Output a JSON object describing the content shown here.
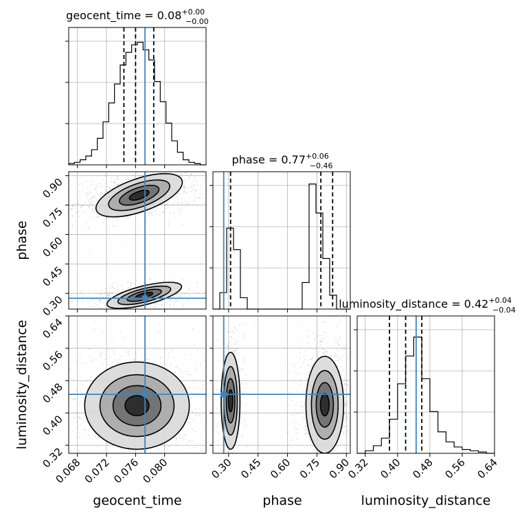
{
  "chart_data": {
    "type": "corner",
    "parameters": [
      "geocent_time",
      "phase",
      "luminosity_distance"
    ],
    "truth": {
      "geocent_time": 0.0773,
      "phase": 0.275,
      "luminosity_distance": 0.446
    },
    "panels": {
      "geocent_time": {
        "title": {
          "name": "geocent_time",
          "value": "0.08",
          "upper": "+0.00",
          "lower": "−0.00"
        },
        "range": [
          0.0668,
          0.0857
        ],
        "quantiles": [
          0.0744,
          0.076,
          0.0785
        ],
        "hist_heights": [
          0.01,
          0.02,
          0.04,
          0.07,
          0.12,
          0.21,
          0.34,
          0.49,
          0.64,
          0.79,
          0.89,
          0.95,
          0.97,
          0.91,
          0.83,
          0.66,
          0.5,
          0.33,
          0.19,
          0.1,
          0.04,
          0.02,
          0.01,
          0.0
        ],
        "xticks": [
          "0.068",
          "0.072",
          "0.076",
          "0.080"
        ]
      },
      "phase": {
        "title": {
          "name": "phase",
          "value": "0.77",
          "upper": "+0.06",
          "lower": "−0.46"
        },
        "range": [
          0.22,
          0.92
        ],
        "quantiles": [
          0.31,
          0.77,
          0.83
        ],
        "hist_heights": [
          0.0,
          0.13,
          0.64,
          0.47,
          0.09,
          0.0,
          0.0,
          0.0,
          0.0,
          0.0,
          0.0,
          0.0,
          0.0,
          0.21,
          0.99,
          0.76,
          0.4,
          0.11,
          0.0,
          0.0
        ],
        "ticks": [
          "0.30",
          "0.45",
          "0.60",
          "0.75",
          "0.90"
        ]
      },
      "luminosity_distance": {
        "title": {
          "name": "luminosity_distance",
          "value": "0.42",
          "upper": "+0.04",
          "lower": "−0.04"
        },
        "range": [
          0.3,
          0.64
        ],
        "quantiles": [
          0.38,
          0.42,
          0.46
        ],
        "hist_heights": [
          0.0,
          0.02,
          0.06,
          0.12,
          0.27,
          0.55,
          0.77,
          0.92,
          0.59,
          0.33,
          0.17,
          0.09,
          0.05,
          0.03,
          0.02,
          0.01,
          0.0
        ],
        "ticks": [
          "0.32",
          "0.40",
          "0.48",
          "0.56",
          "0.64"
        ]
      }
    },
    "pairs": [
      {
        "x": "geocent_time",
        "y": "phase",
        "blobs": [
          {
            "cx": 0.0765,
            "cy": 0.8,
            "sx": 0.0026,
            "sy": 0.035,
            "tilt": -0.35,
            "weight": 1.0
          },
          {
            "cx": 0.0772,
            "cy": 0.29,
            "sx": 0.0022,
            "sy": 0.02,
            "tilt": -0.25,
            "weight": 0.55
          }
        ]
      },
      {
        "x": "geocent_time",
        "y": "luminosity_distance",
        "blobs": [
          {
            "cx": 0.0762,
            "cy": 0.418,
            "sx": 0.003,
            "sy": 0.045,
            "tilt": 0.0,
            "weight": 1.0
          }
        ]
      },
      {
        "x": "phase",
        "y": "luminosity_distance",
        "blobs": [
          {
            "cx": 0.31,
            "cy": 0.43,
            "sx": 0.02,
            "sy": 0.05,
            "tilt": 0.0,
            "weight": 0.55
          },
          {
            "cx": 0.79,
            "cy": 0.42,
            "sx": 0.04,
            "sy": 0.05,
            "tilt": 0.0,
            "weight": 1.0
          }
        ]
      }
    ],
    "yticks": {
      "phase": [
        "0.90",
        "0.75",
        "0.60",
        "0.45",
        "0.30"
      ],
      "luminosity_distance": [
        "0.64",
        "0.56",
        "0.48",
        "0.40",
        "0.32"
      ]
    },
    "colors": {
      "truth": "#4682b4",
      "line": "#000000",
      "grid": "#b0b0b0"
    },
    "grid": true
  }
}
